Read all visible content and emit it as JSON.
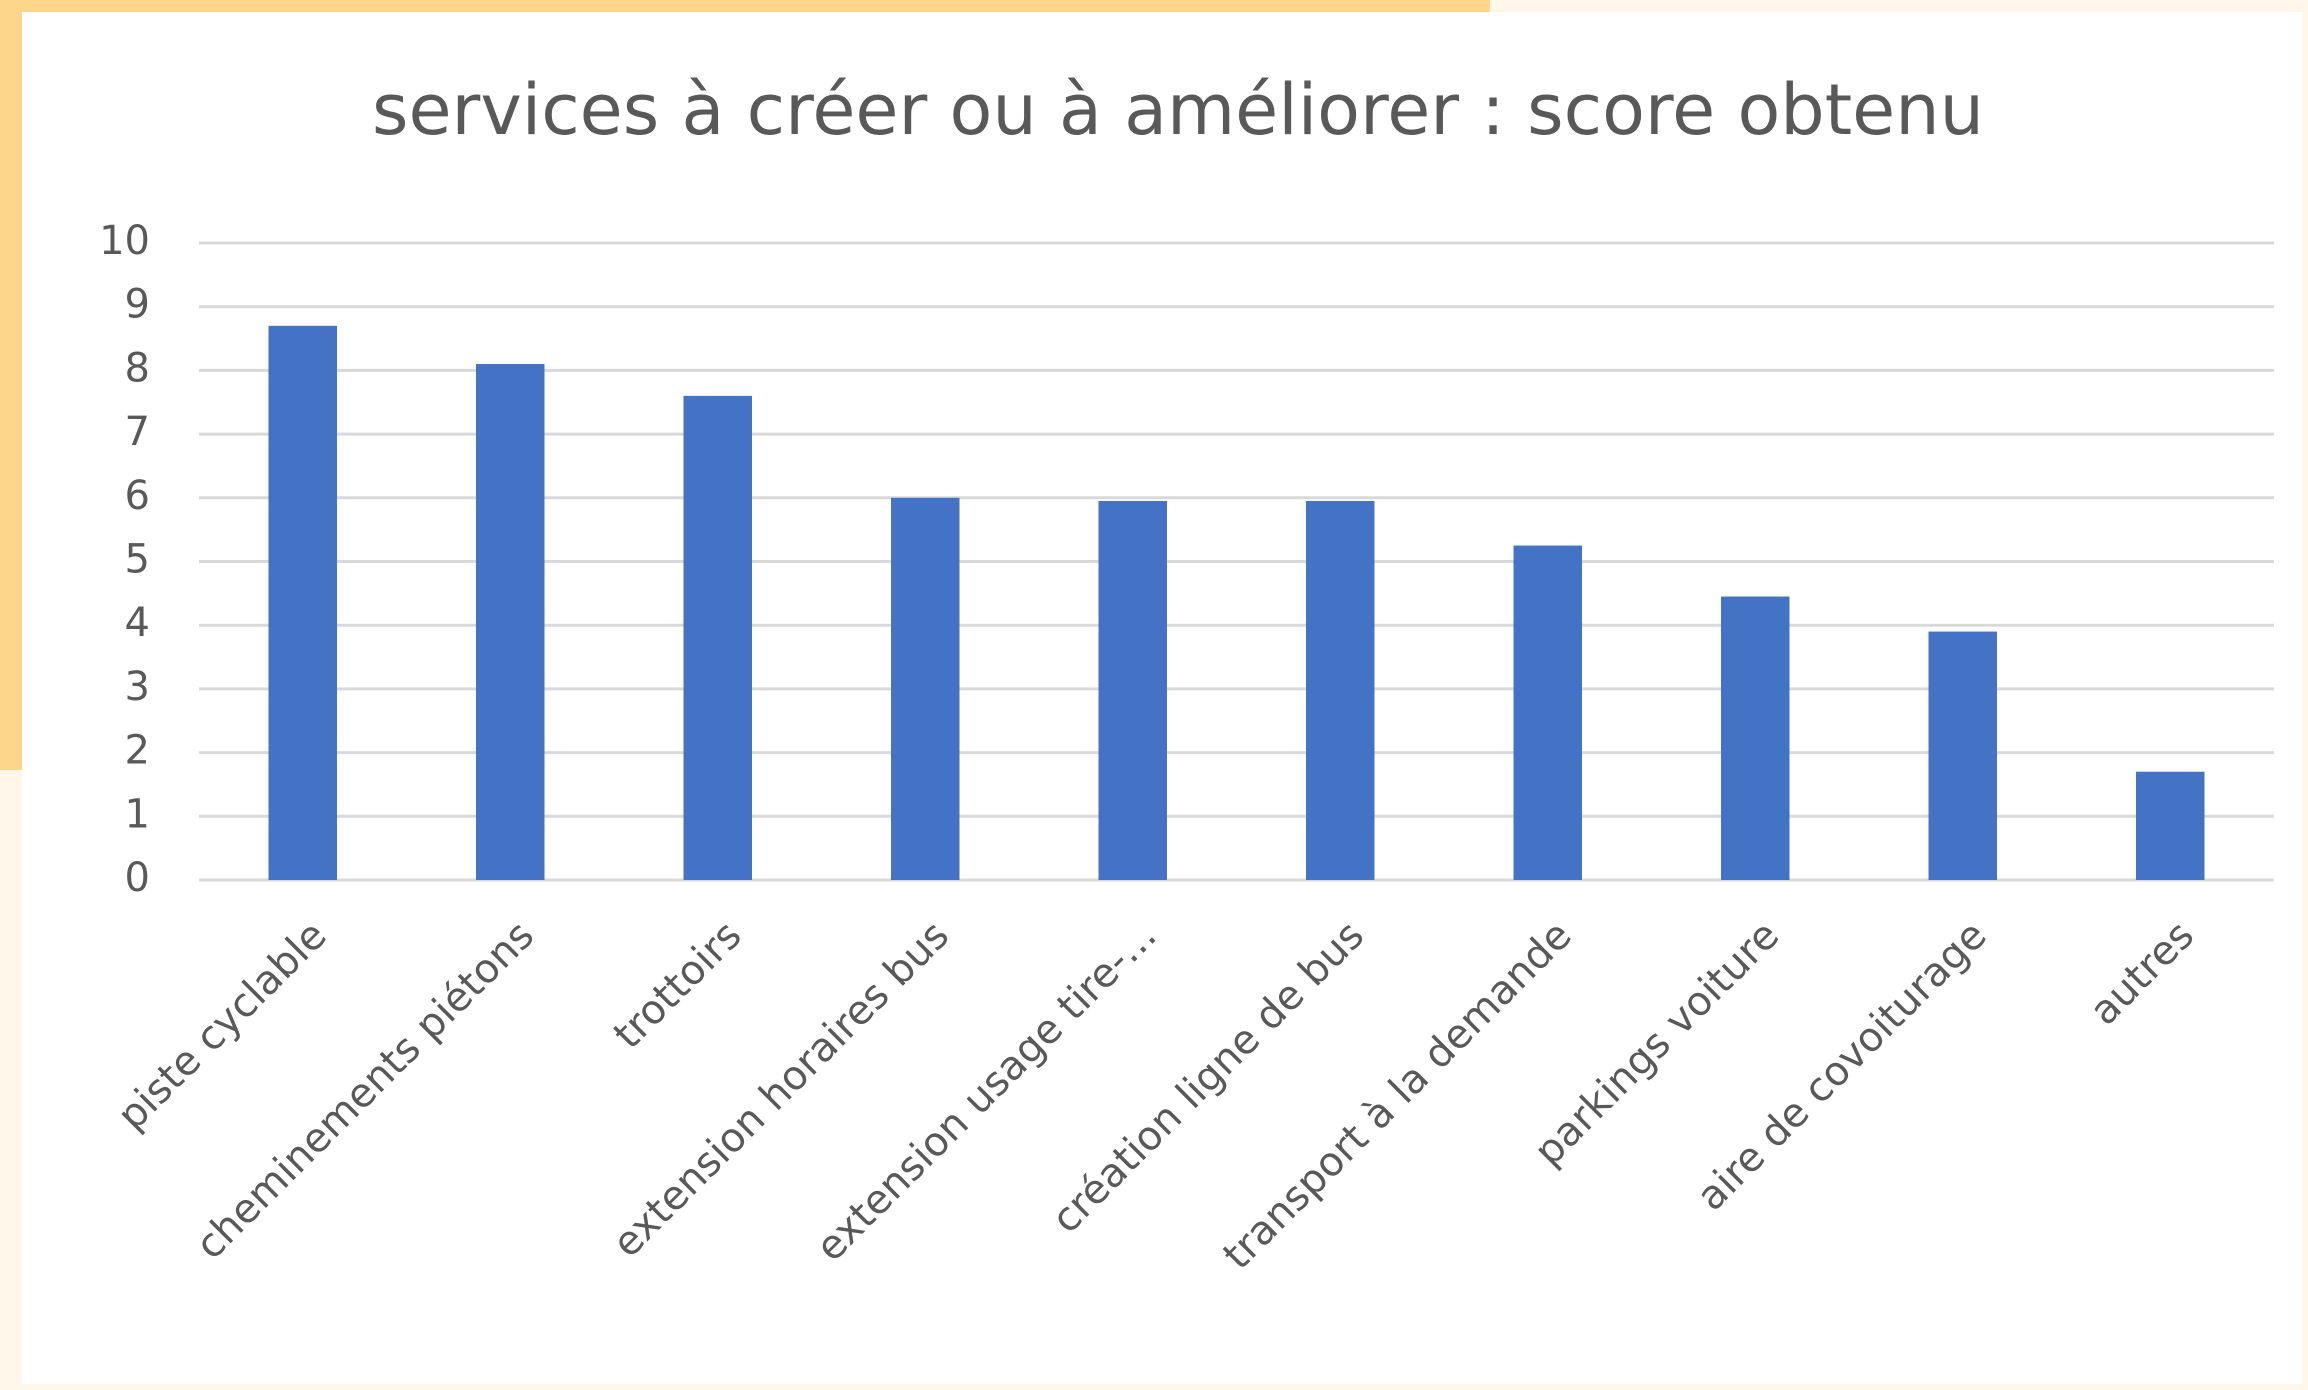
{
  "chart_data": {
    "type": "bar",
    "title": "services à créer ou à améliorer : score obtenu",
    "categories": [
      "piste cyclable",
      "cheminements piétons",
      "trottoirs",
      "extension horaires bus",
      "extension usage tire-...",
      "création ligne de bus",
      "transport à la demande",
      "parkings voiture",
      "aire de covoiturage",
      "autres"
    ],
    "values": [
      8.7,
      8.1,
      7.6,
      6.0,
      5.95,
      5.95,
      5.25,
      4.45,
      3.9,
      1.7
    ],
    "color": "#4472c4",
    "ylim": [
      0,
      10
    ],
    "yticks": [
      0,
      1,
      2,
      3,
      4,
      5,
      6,
      7,
      8,
      9,
      10
    ],
    "grid": true
  }
}
